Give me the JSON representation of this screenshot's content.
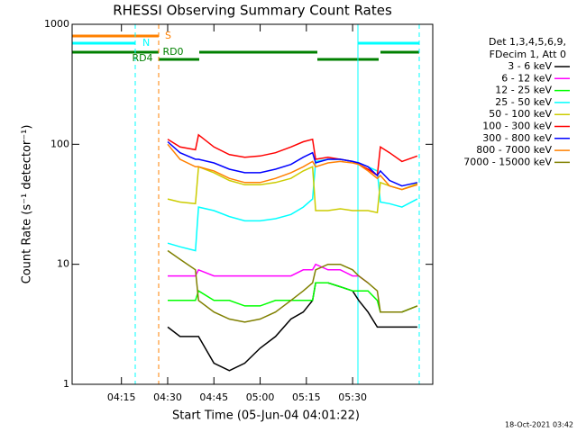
{
  "chart_data": {
    "type": "line",
    "title": "RHESSI Observing Summary Count Rates",
    "x_label": "Start Time (05-Jun-04 04:01:22)",
    "y_label": "Count Rate (s⁻¹ detector⁻¹)",
    "legend_header": [
      "Det 1,3,4,5,6,9,",
      "FDecim 1, Att 0"
    ],
    "footer": "18-Oct-2021 03:42",
    "log_y": true,
    "xlim": [
      "03:59",
      "05:56"
    ],
    "xticks": [
      "04:15",
      "04:30",
      "04:45",
      "05:00",
      "05:15",
      "05:30"
    ],
    "ylim": [
      1,
      1000
    ],
    "yticks": [
      1,
      10,
      100,
      1000
    ],
    "status_labels": [
      {
        "text": "S",
        "color": "#ff8000"
      },
      {
        "text": "N",
        "color": "#00ffff"
      },
      {
        "text": "RD4",
        "color": "#008000"
      },
      {
        "text": "RD0",
        "color": "#008000"
      }
    ],
    "x": [
      "04:30",
      "04:34",
      "04:39",
      "04:40",
      "04:45",
      "04:50",
      "04:55",
      "05:00",
      "05:05",
      "05:10",
      "05:14",
      "05:17",
      "05:18",
      "05:22",
      "05:26",
      "05:30",
      "05:32",
      "05:35",
      "05:38",
      "05:39",
      "05:42",
      "05:46",
      "05:51"
    ],
    "series": [
      {
        "name": "3 - 6 keV",
        "color": "#000000",
        "values": [
          3,
          2.5,
          2.5,
          2.5,
          1.5,
          1.3,
          1.5,
          2,
          2.5,
          3.5,
          4,
          5,
          7,
          7,
          6.5,
          6,
          5,
          4,
          3,
          3,
          3,
          3,
          3
        ]
      },
      {
        "name": "6 - 12 keV",
        "color": "#ff00ff",
        "values": [
          8,
          8,
          8,
          9,
          8,
          8,
          8,
          8,
          8,
          8,
          9,
          9,
          10,
          9,
          9,
          8,
          8,
          7,
          null,
          null,
          null,
          null,
          null
        ]
      },
      {
        "name": "12 - 25 keV",
        "color": "#00ff00",
        "values": [
          5,
          5,
          5,
          6,
          5,
          5,
          4.5,
          4.5,
          5,
          5,
          5,
          5,
          7,
          7,
          6.5,
          6,
          6,
          6,
          5,
          4,
          4,
          4,
          4.5
        ]
      },
      {
        "name": "25 - 50 keV",
        "color": "#00ffff",
        "values": [
          15,
          14,
          13,
          30,
          28,
          25,
          23,
          23,
          24,
          26,
          30,
          35,
          72,
          75,
          75,
          72,
          70,
          65,
          60,
          33,
          32,
          30,
          35
        ]
      },
      {
        "name": "50 - 100 keV",
        "color": "#cccc00",
        "values": [
          35,
          33,
          32,
          65,
          58,
          50,
          46,
          46,
          48,
          52,
          60,
          65,
          28,
          28,
          29,
          28,
          28,
          28,
          27,
          48,
          45,
          42,
          47
        ]
      },
      {
        "name": "100 - 300 keV",
        "color": "#ff0000",
        "values": [
          110,
          95,
          90,
          120,
          95,
          82,
          78,
          80,
          85,
          95,
          105,
          110,
          75,
          78,
          75,
          72,
          68,
          62,
          55,
          95,
          85,
          72,
          80
        ]
      },
      {
        "name": "300 - 800 keV",
        "color": "#0000ff",
        "values": [
          105,
          85,
          75,
          75,
          70,
          62,
          58,
          58,
          62,
          68,
          78,
          85,
          70,
          75,
          75,
          72,
          70,
          65,
          55,
          60,
          50,
          45,
          48
        ]
      },
      {
        "name": "800 - 7000 keV",
        "color": "#ff8000",
        "values": [
          100,
          75,
          65,
          65,
          60,
          52,
          48,
          48,
          52,
          58,
          65,
          72,
          65,
          70,
          72,
          70,
          68,
          60,
          52,
          55,
          45,
          42,
          46
        ]
      },
      {
        "name": "7000 - 15000 keV",
        "color": "#808000",
        "values": [
          13,
          11,
          9,
          5,
          4,
          3.5,
          3.3,
          3.5,
          4,
          5,
          6,
          7,
          9,
          10,
          10,
          9,
          8,
          7,
          6,
          4,
          4,
          4,
          4.5
        ]
      }
    ]
  }
}
